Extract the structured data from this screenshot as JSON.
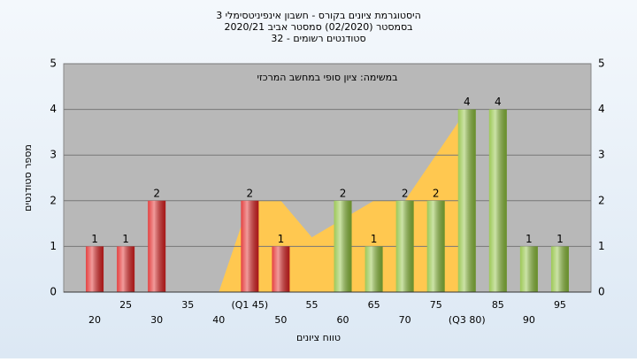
{
  "chart_data": {
    "type": "bar",
    "title": "היסטוגרמת ציונים בקורס - חשבון אינפיניטסימלי 3",
    "subtitle": "בסמסטר  (02/2020)  סמסטר אביב 2020/21",
    "subtitle2": "סטודנטים רשומים - 32",
    "annotation": "במשימה: ציון סופי במחשב המרכזי",
    "x_label": "טווח ציונים",
    "y_label": "מספר סטודנטים",
    "categories": [
      "20",
      "25",
      "30",
      "35",
      "40",
      "(Q1 45)",
      "50",
      "55",
      "60",
      "65",
      "70",
      "75",
      "(Q3 80)",
      "85",
      "90",
      "95"
    ],
    "values": [
      1,
      1,
      2,
      0,
      0,
      2,
      1,
      0,
      2,
      1,
      2,
      2,
      4,
      4,
      1,
      1
    ],
    "colors": [
      "#e02020",
      "#e02020",
      "#e02020",
      "#e02020",
      "#e02020",
      "#e02020",
      "#e02020",
      "#8cbf3a",
      "#8cbf3a",
      "#8cbf3a",
      "#8cbf3a",
      "#8cbf3a",
      "#8cbf3a",
      "#8cbf3a",
      "#8cbf3a",
      "#8cbf3a"
    ],
    "trend_area": {
      "color": "#ffc850",
      "values": [
        null,
        null,
        null,
        null,
        0,
        2,
        2,
        1.2,
        1.6,
        2,
        2,
        3,
        4,
        null,
        null,
        null
      ]
    },
    "ylim": [
      0,
      5
    ],
    "yticks": [
      0,
      1,
      2,
      3,
      4,
      5
    ],
    "grid": true
  }
}
